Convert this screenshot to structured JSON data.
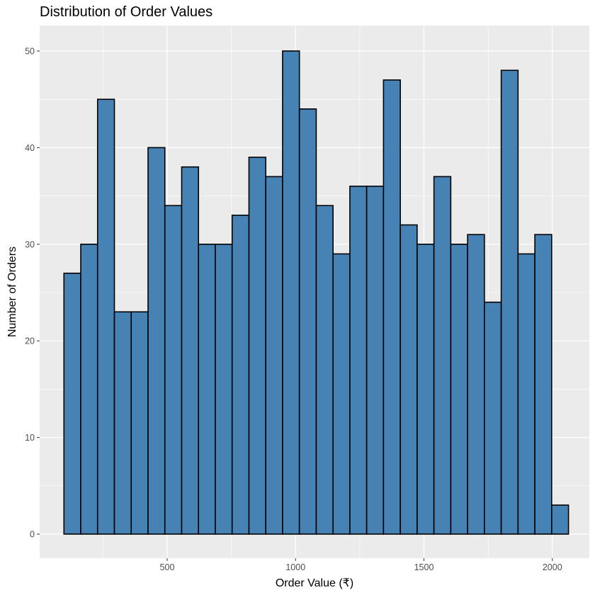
{
  "chart_data": {
    "type": "bar",
    "title": "Distribution of Order Values",
    "xlabel": "Order Value (₹)",
    "ylabel": "Number of Orders",
    "bin_width": 65.5,
    "bin_start": 98,
    "values": [
      27,
      30,
      45,
      23,
      23,
      40,
      34,
      38,
      30,
      30,
      33,
      39,
      37,
      50,
      44,
      34,
      29,
      36,
      36,
      47,
      32,
      30,
      37,
      30,
      31,
      24,
      48,
      29,
      31,
      3
    ],
    "xlim": [
      98,
      2062
    ],
    "ylim": [
      0,
      50
    ],
    "x_ticks": [
      500,
      1000,
      1500,
      2000
    ],
    "y_ticks": [
      0,
      10,
      20,
      30,
      40,
      50
    ],
    "grid": true,
    "colors": {
      "bar_fill": "#4682B4",
      "bar_stroke": "#000000",
      "panel": "#EBEBEB",
      "grid": "#FFFFFF"
    }
  }
}
